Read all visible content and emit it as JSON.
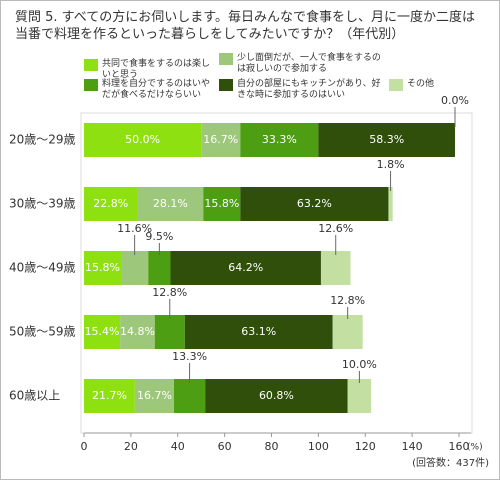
{
  "chart_data": {
    "type": "stacked-bar-horizontal",
    "title": "質問 5. すべての方にお伺いします。毎日みんなで食事をし、月に一度か二度は当番で料理を作るといった暮らしをしてみたいですか？（年代別）",
    "categories": [
      "20歳〜29歳",
      "30歳〜39歳",
      "40歳〜49歳",
      "50歳〜59歳",
      "60歳以上"
    ],
    "series": [
      {
        "name": "共同で食事をするのは楽しいと思う",
        "color": "#8fe010",
        "values": [
          50.0,
          22.8,
          15.8,
          15.4,
          21.7
        ],
        "value_labels": [
          "50.0%",
          "22.8%",
          "15.8%",
          "15.4%",
          "21.7%"
        ]
      },
      {
        "name": "少し面倒だが、一人で食事をするのは寂しいので参加する",
        "color": "#9dc77a",
        "values": [
          16.7,
          28.1,
          11.6,
          14.8,
          16.7
        ],
        "value_labels": [
          "16.7%",
          "28.1%",
          "11.6%",
          "14.8%",
          "16.7%"
        ]
      },
      {
        "name": "料理を自分でするのはいやだが食べるだけならいい",
        "color": "#4e9e13",
        "values": [
          33.3,
          15.8,
          9.5,
          12.8,
          13.3
        ],
        "value_labels": [
          "33.3%",
          "15.8%",
          "9.5%",
          "12.8%",
          "13.3%"
        ]
      },
      {
        "name": "自分の部屋にもキッチンがあり、好きな時に参加するのはいい",
        "color": "#2f4f0b",
        "values": [
          58.3,
          63.2,
          64.2,
          63.1,
          60.8
        ],
        "value_labels": [
          "58.3%",
          "63.2%",
          "64.2%",
          "63.1%",
          "60.8%"
        ]
      },
      {
        "name": "その他",
        "color": "#c3e0a2",
        "values": [
          0.0,
          1.8,
          12.6,
          12.8,
          10.0
        ],
        "value_labels": [
          "0.0%",
          "1.8%",
          "12.6%",
          "12.8%",
          "10.0%"
        ]
      }
    ],
    "xlim": [
      0,
      160
    ],
    "xticks": [
      0,
      20,
      40,
      60,
      80,
      100,
      120,
      140,
      160
    ],
    "x_unit": "(%)",
    "note": "(回答数：437件)"
  }
}
